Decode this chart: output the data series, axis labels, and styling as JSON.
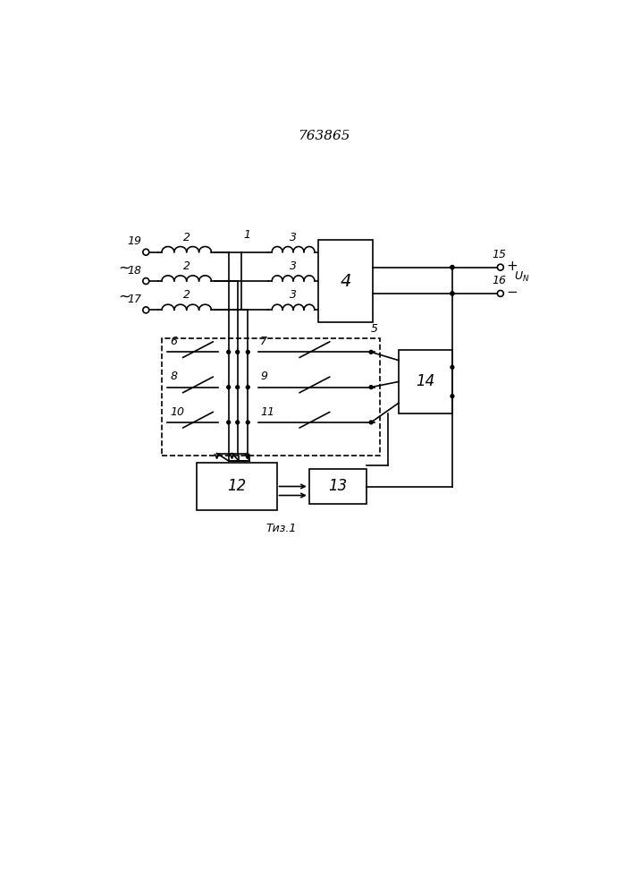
{
  "title": "763865",
  "bg_color": "#ffffff",
  "line_color": "#000000",
  "lw": 1.2
}
